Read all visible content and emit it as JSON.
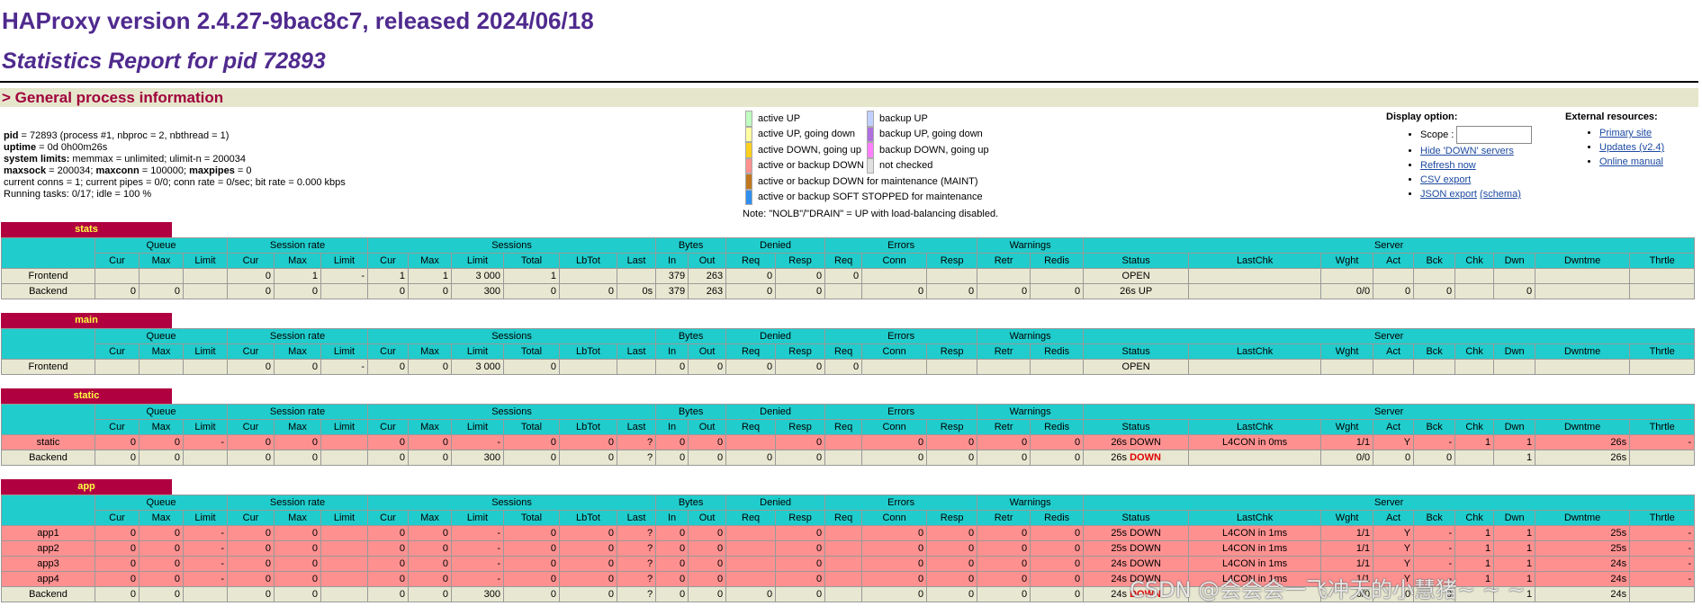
{
  "header": {
    "title": "HAProxy version 2.4.27-9bac8c7, released 2024/06/18",
    "subtitle": "Statistics Report for pid 72893"
  },
  "section": "> General process information",
  "info": [
    [
      {
        "text": "pid",
        "bold": true
      },
      {
        "text": " = 72893 (process #1, nbproc = 2, nbthread = 1)"
      }
    ],
    [
      {
        "text": "uptime",
        "bold": true
      },
      {
        "text": " = 0d 0h00m26s"
      }
    ],
    [
      {
        "text": "system limits:",
        "bold": true
      },
      {
        "text": " memmax = unlimited; ulimit-n = 200034"
      }
    ],
    [
      {
        "text": "maxsock",
        "bold": true
      },
      {
        "text": " = 200034; "
      },
      {
        "text": "maxconn",
        "bold": true
      },
      {
        "text": " = 100000; "
      },
      {
        "text": "maxpipes",
        "bold": true
      },
      {
        "text": " = 0"
      }
    ],
    [
      {
        "text": "current conns = 1; current pipes = 0/0; conn rate = 0/sec; bit rate = 0.000 kbps"
      }
    ],
    [
      {
        "text": "Running tasks: 0/17; idle = 100 %"
      }
    ]
  ],
  "legend": {
    "columns": [
      [
        {
          "label": "active UP",
          "color": "#c0ffc0"
        },
        {
          "label": "active UP, going down",
          "color": "#ffffa0"
        },
        {
          "label": "active DOWN, going up",
          "color": "#ffd020"
        },
        {
          "label": "active or backup DOWN",
          "color": "#ff9090"
        },
        {
          "label": "active or backup DOWN for maintenance (MAINT)",
          "color": "#c07820"
        },
        {
          "label": "active or backup SOFT STOPPED for maintenance",
          "color": "#3090f0"
        }
      ],
      [
        {
          "label": "backup UP",
          "color": "#c0d0ff"
        },
        {
          "label": "backup UP, going down",
          "color": "#b070e0"
        },
        {
          "label": "backup DOWN, going up",
          "color": "#ff80ff"
        },
        {
          "label": "not checked",
          "color": "#e0e0e0"
        }
      ]
    ],
    "note": "Note: \"NOLB\"/\"DRAIN\" = UP with load-balancing disabled."
  },
  "display": {
    "title": "Display option:",
    "scope": "Scope :",
    "links": [
      "Hide 'DOWN' servers",
      "Refresh now",
      "CSV export"
    ],
    "json": "JSON export",
    "schema": "(schema)"
  },
  "external": {
    "title": "External resources:",
    "links": [
      "Primary site",
      "Updates (v2.4)",
      "Online manual"
    ]
  },
  "columns": [
    {
      "group": "Queue",
      "cols": [
        "Cur",
        "Max",
        "Limit"
      ]
    },
    {
      "group": "Session rate",
      "cols": [
        "Cur",
        "Max",
        "Limit"
      ]
    },
    {
      "group": "Sessions",
      "cols": [
        "Cur",
        "Max",
        "Limit",
        "Total",
        "LbTot",
        "Last"
      ]
    },
    {
      "group": "Bytes",
      "cols": [
        "In",
        "Out"
      ]
    },
    {
      "group": "Denied",
      "cols": [
        "Req",
        "Resp"
      ]
    },
    {
      "group": "Errors",
      "cols": [
        "Req",
        "Conn",
        "Resp"
      ]
    },
    {
      "group": "Warnings",
      "cols": [
        "Retr",
        "Redis"
      ]
    },
    {
      "group": "Server",
      "cols": [
        "Status",
        "LastChk",
        "Wght",
        "Act",
        "Bck",
        "Chk",
        "Dwn",
        "Dwntme",
        "Thrtle"
      ]
    }
  ],
  "proxies": [
    {
      "name": "stats",
      "rows": [
        {
          "name": "Frontend",
          "kind": "frontend",
          "cells": [
            null,
            null,
            null,
            0,
            1,
            "-",
            1,
            1,
            "3 000",
            1,
            null,
            null,
            379,
            263,
            0,
            0,
            0,
            null,
            null,
            null,
            null,
            "OPEN",
            null,
            null,
            null,
            null,
            null,
            null,
            null,
            null
          ]
        },
        {
          "name": "Backend",
          "kind": "backend",
          "cells": [
            0,
            0,
            null,
            0,
            0,
            null,
            0,
            0,
            300,
            0,
            0,
            "0s",
            379,
            263,
            0,
            0,
            null,
            0,
            0,
            0,
            0,
            "26s UP",
            null,
            "0/0",
            0,
            0,
            null,
            0,
            null,
            null
          ]
        }
      ]
    },
    {
      "name": "main",
      "rows": [
        {
          "name": "Frontend",
          "kind": "frontend",
          "cells": [
            null,
            null,
            null,
            0,
            0,
            "-",
            0,
            0,
            "3 000",
            0,
            null,
            null,
            0,
            0,
            0,
            0,
            0,
            null,
            null,
            null,
            null,
            "OPEN",
            null,
            null,
            null,
            null,
            null,
            null,
            null,
            null
          ]
        }
      ]
    },
    {
      "name": "static",
      "rows": [
        {
          "name": "static",
          "kind": "down",
          "cells": [
            0,
            0,
            "-",
            0,
            0,
            null,
            0,
            0,
            "-",
            0,
            0,
            "?",
            0,
            0,
            null,
            0,
            null,
            0,
            0,
            0,
            0,
            "26s DOWN",
            "L4CON in 0ms",
            "1/1",
            "Y",
            "-",
            1,
            1,
            "26s",
            "-"
          ]
        },
        {
          "name": "Backend",
          "kind": "backend",
          "cells": [
            0,
            0,
            null,
            0,
            0,
            null,
            0,
            0,
            300,
            0,
            0,
            "?",
            0,
            0,
            0,
            0,
            null,
            0,
            0,
            0,
            0,
            {
              "parts": [
                "26s",
                "DOWN"
              ]
            },
            null,
            "0/0",
            0,
            0,
            null,
            1,
            "26s",
            null
          ]
        }
      ]
    },
    {
      "name": "app",
      "rows": [
        {
          "name": "app1",
          "kind": "down",
          "cells": [
            0,
            0,
            "-",
            0,
            0,
            null,
            0,
            0,
            "-",
            0,
            0,
            "?",
            0,
            0,
            null,
            0,
            null,
            0,
            0,
            0,
            0,
            "25s DOWN",
            "L4CON in 1ms",
            "1/1",
            "Y",
            "-",
            1,
            1,
            "25s",
            "-"
          ]
        },
        {
          "name": "app2",
          "kind": "down",
          "cells": [
            0,
            0,
            "-",
            0,
            0,
            null,
            0,
            0,
            "-",
            0,
            0,
            "?",
            0,
            0,
            null,
            0,
            null,
            0,
            0,
            0,
            0,
            "25s DOWN",
            "L4CON in 1ms",
            "1/1",
            "Y",
            "-",
            1,
            1,
            "25s",
            "-"
          ]
        },
        {
          "name": "app3",
          "kind": "down",
          "cells": [
            0,
            0,
            "-",
            0,
            0,
            null,
            0,
            0,
            "-",
            0,
            0,
            "?",
            0,
            0,
            null,
            0,
            null,
            0,
            0,
            0,
            0,
            "24s DOWN",
            "L4CON in 1ms",
            "1/1",
            "Y",
            "-",
            1,
            1,
            "24s",
            "-"
          ]
        },
        {
          "name": "app4",
          "kind": "down",
          "cells": [
            0,
            0,
            "-",
            0,
            0,
            null,
            0,
            0,
            "-",
            0,
            0,
            "?",
            0,
            0,
            null,
            0,
            null,
            0,
            0,
            0,
            0,
            "24s DOWN",
            "L4CON in 1ms",
            "1/1",
            "Y",
            "-",
            1,
            1,
            "24s",
            "-"
          ]
        },
        {
          "name": "Backend",
          "kind": "backend",
          "cells": [
            0,
            0,
            null,
            0,
            0,
            null,
            0,
            0,
            300,
            0,
            0,
            "?",
            0,
            0,
            0,
            0,
            null,
            0,
            0,
            0,
            0,
            {
              "parts": [
                "24s",
                "DOWN"
              ]
            },
            null,
            "0/0",
            0,
            0,
            null,
            1,
            "24s",
            null
          ]
        }
      ]
    }
  ],
  "watermark": "CSDN @会会会一飞冲天的小慧猪~ ~ ~"
}
